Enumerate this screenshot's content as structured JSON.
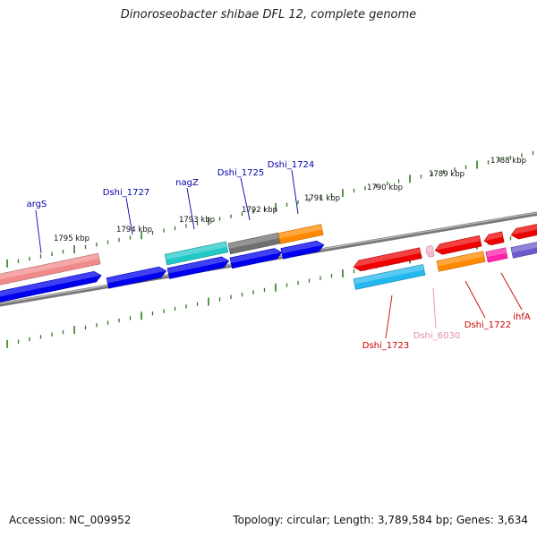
{
  "title": "Dinoroseobacter shibae DFL 12, complete genome",
  "footer": {
    "accession": "Accession: NC_009952",
    "summary": "Topology: circular; Length: 3,789,584 bp; Genes: 3,634"
  },
  "colors": {
    "backbone": "#777777",
    "ticks": "#2e7d1e",
    "label_forward": "#0000aa",
    "label_reverse": "#cc0000",
    "label_pseudo": "#e08fb0"
  },
  "scale_labels": [
    "1795 kbp",
    "1794 kbp",
    "1793 kbp",
    "1792 kbp",
    "1791 kbp",
    "1790 kbp",
    "1789 kbp",
    "1788 kbp"
  ],
  "genes": [
    {
      "label": "argS",
      "strand": "forward",
      "color": "#f08a8a"
    },
    {
      "label": "Dshi_1727",
      "strand": "forward",
      "color": "#0000ee"
    },
    {
      "label": "nagZ",
      "strand": "forward",
      "color": "#22c7c7"
    },
    {
      "label": "Dshi_1725",
      "strand": "forward",
      "color": "#707070"
    },
    {
      "label": "Dshi_1724",
      "strand": "forward",
      "color": "#ff8a00"
    },
    {
      "label": "Dshi_1723",
      "strand": "reverse",
      "color": "#ee0000"
    },
    {
      "label": "Dshi_6030",
      "strand": "reverse",
      "color": "#f7b8d0"
    },
    {
      "label": "Dshi_1722",
      "strand": "reverse",
      "color": "#ee0000"
    },
    {
      "label": "ihfA",
      "strand": "reverse",
      "color": "#ee0000"
    }
  ]
}
